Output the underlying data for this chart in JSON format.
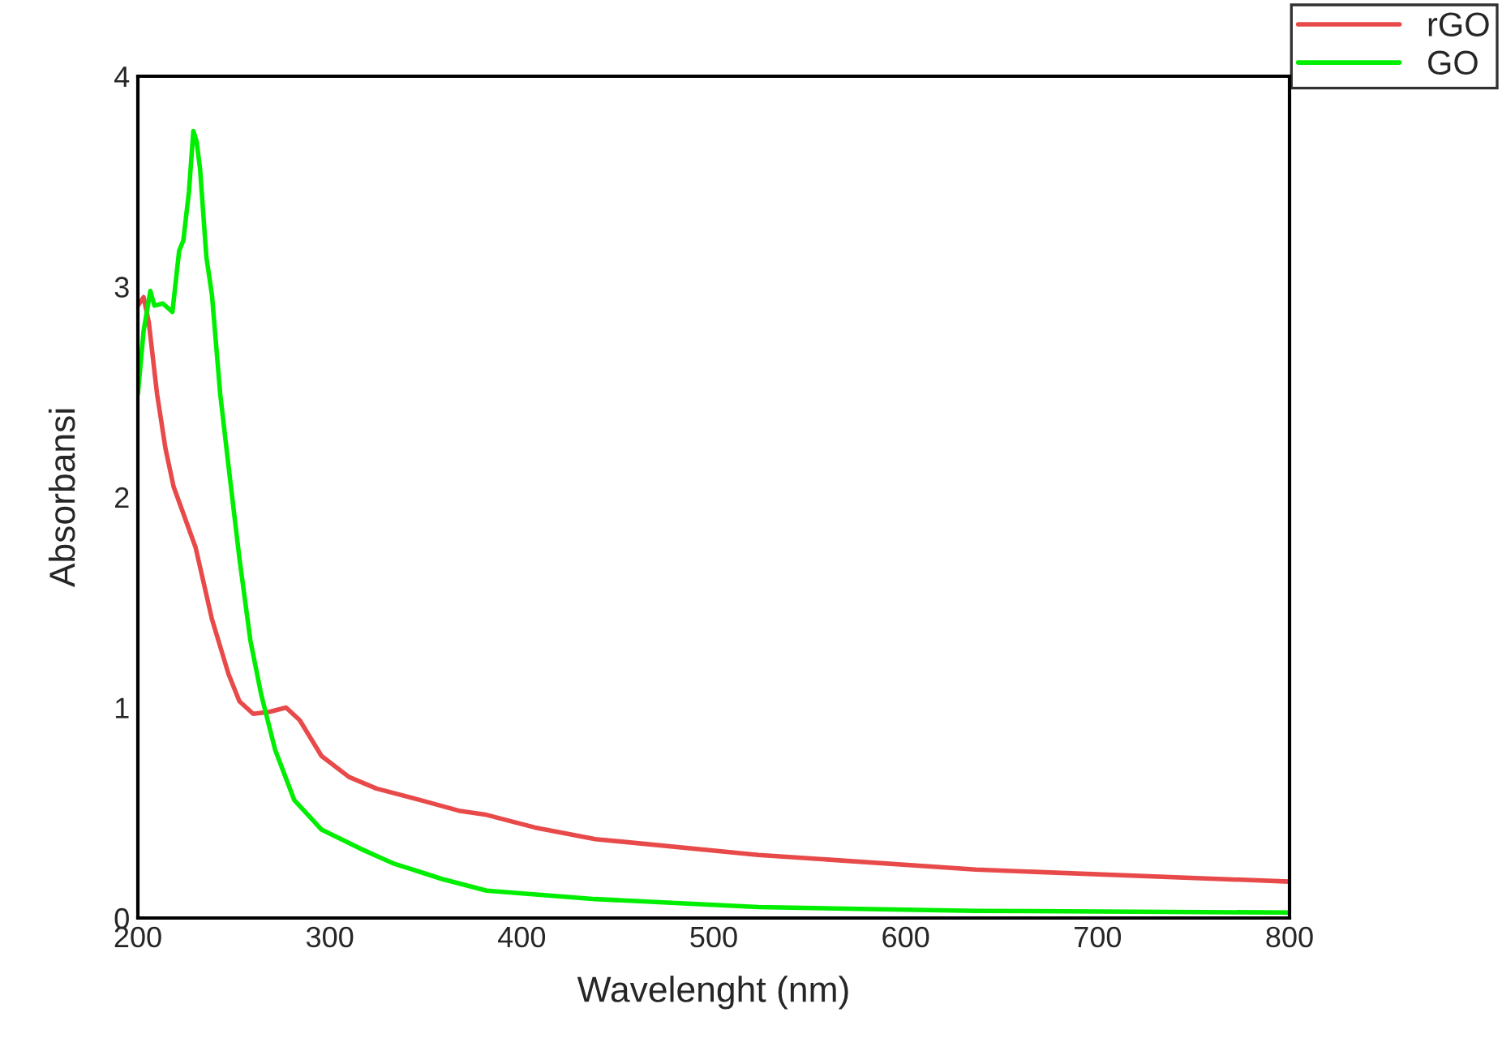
{
  "chart_data": {
    "type": "line",
    "xlabel": "Wavelenght (nm)",
    "ylabel": "Absorbansi",
    "xlim": [
      200,
      800
    ],
    "ylim": [
      0,
      4
    ],
    "xticks": [
      200,
      300,
      400,
      500,
      600,
      700,
      800
    ],
    "yticks": [
      0,
      1,
      2,
      3,
      4
    ],
    "grid": false,
    "legend": "top right",
    "marker": "none",
    "line_style": "solid",
    "series": [
      {
        "name": "rGO",
        "color": "#e84a4a",
        "x": [
          200,
          203,
          205.7,
          210,
          214.4,
          218.6,
          230.1,
          238.6,
          247.2,
          252.9,
          260.1,
          268.6,
          277.2,
          284.3,
          295.7,
          310,
          324.3,
          347.2,
          367.2,
          381.7,
          406.9,
          438.3,
          523.2,
          636.5,
          800
        ],
        "values": [
          2.91,
          2.95,
          2.83,
          2.49,
          2.23,
          2.05,
          1.76,
          1.42,
          1.16,
          1.03,
          0.97,
          0.98,
          1.0,
          0.94,
          0.77,
          0.67,
          0.615,
          0.56,
          0.51,
          0.49,
          0.43,
          0.375,
          0.3,
          0.23,
          0.173
        ]
      },
      {
        "name": "GO",
        "color": "#00ee00",
        "x": [
          200,
          203,
          206.5,
          208.6,
          213,
          218,
          221.5,
          223.7,
          226.6,
          228.9,
          230.6,
          232.4,
          235.7,
          238.6,
          242.9,
          247.2,
          252.9,
          258.6,
          264.3,
          271.5,
          281.5,
          295.7,
          315.8,
          332.9,
          358.6,
          381.7,
          438.3,
          523.2,
          636.5,
          800
        ],
        "values": [
          2.49,
          2.79,
          2.98,
          2.91,
          2.92,
          2.88,
          3.17,
          3.22,
          3.45,
          3.74,
          3.69,
          3.56,
          3.14,
          2.96,
          2.49,
          2.15,
          1.71,
          1.32,
          1.06,
          0.8,
          0.56,
          0.42,
          0.33,
          0.26,
          0.185,
          0.13,
          0.09,
          0.052,
          0.034,
          0.026
        ]
      }
    ]
  }
}
